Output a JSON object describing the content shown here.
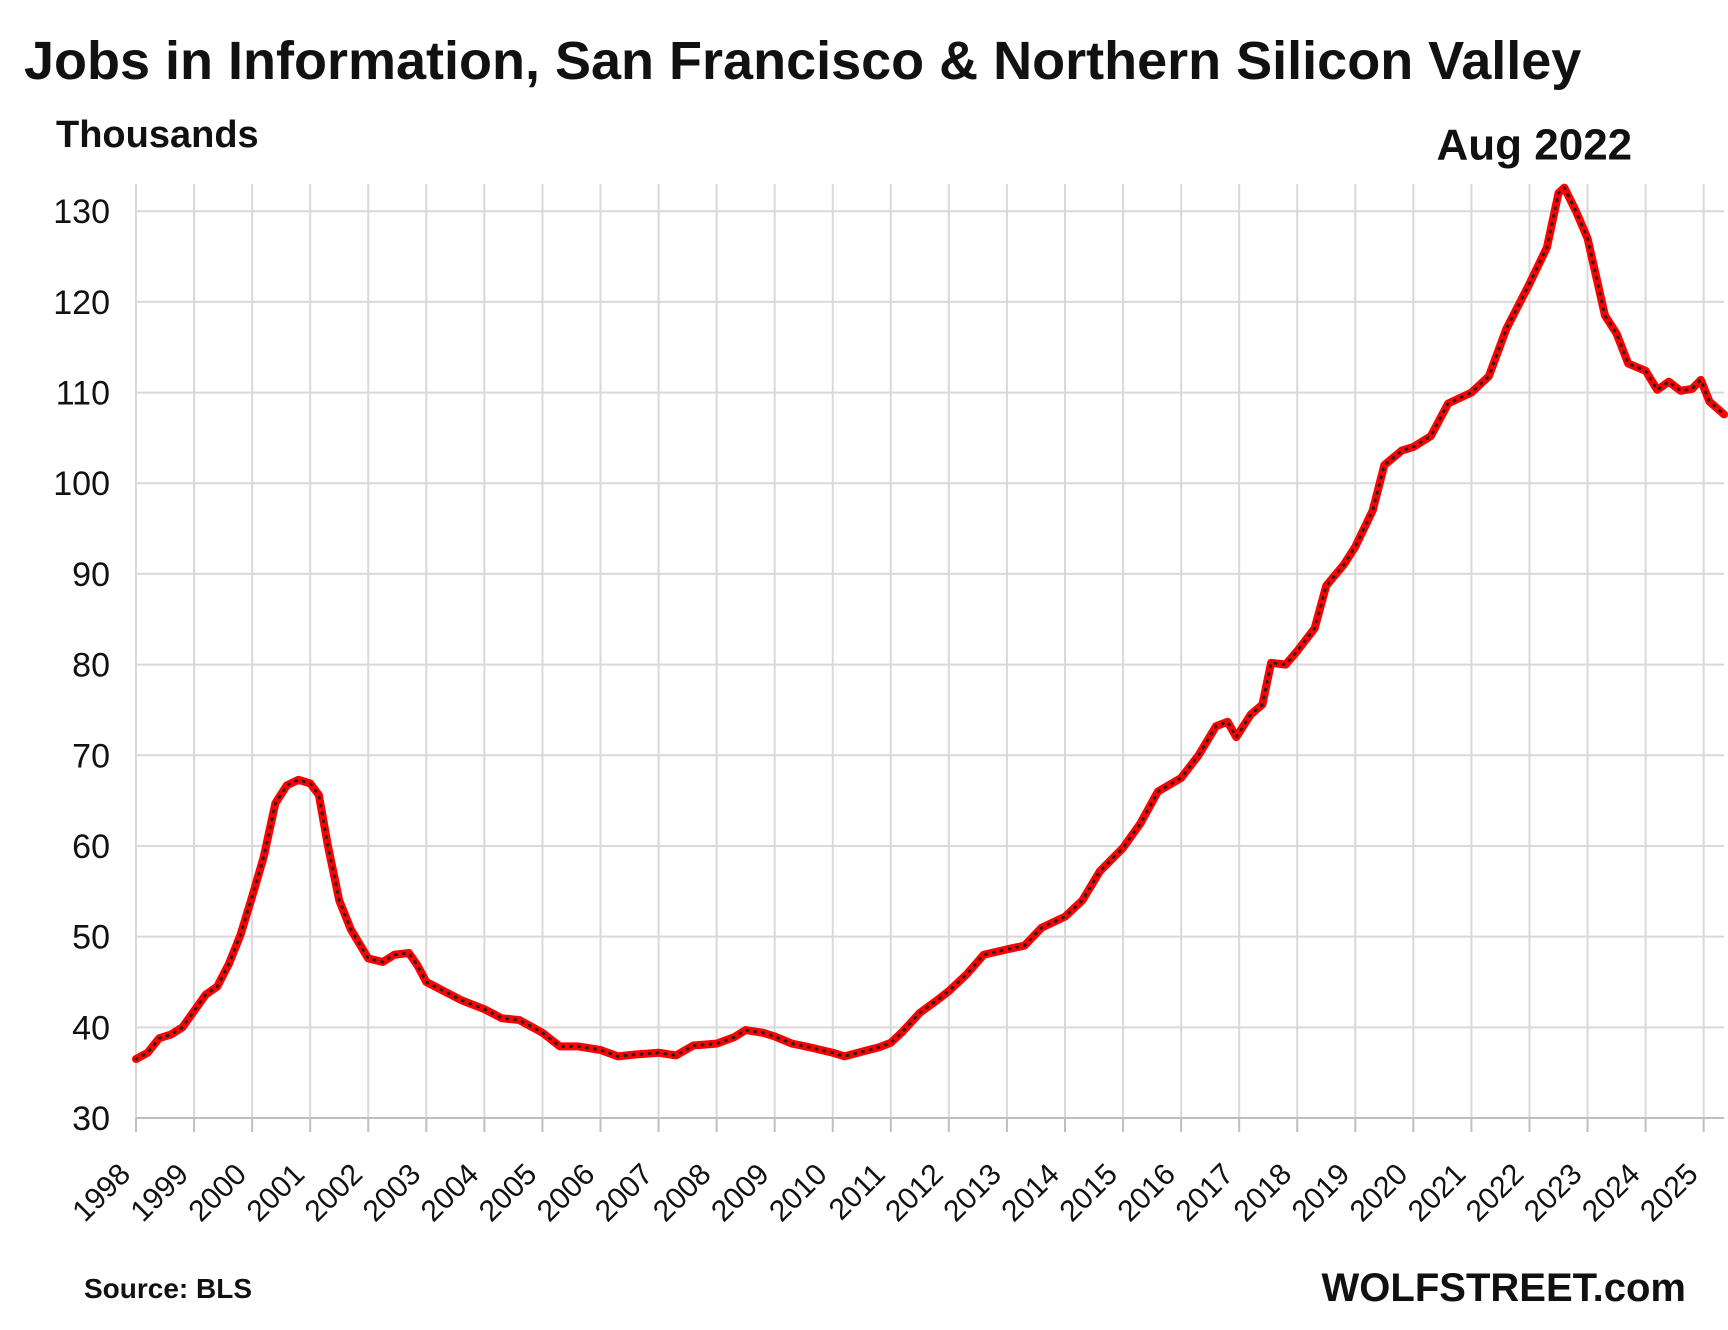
{
  "page": {
    "background_color": "#ffffff",
    "text_color": "#111111",
    "grid_color": "#d9d9d9",
    "series_color": "#ff0000",
    "dot_color": "#222222"
  },
  "chart_data": {
    "type": "line",
    "title": "Jobs in Information, San Francisco & Northern Silicon Valley",
    "subtitle": "Thousands",
    "source": "Source: BLS",
    "brand": "WOLFSTREET.com",
    "xlabel": "",
    "ylabel": "Thousands",
    "ylim": [
      30,
      133
    ],
    "yticks": [
      30,
      40,
      50,
      60,
      70,
      80,
      90,
      100,
      110,
      120,
      130
    ],
    "x_categories": [
      "1998",
      "1999",
      "2000",
      "2001",
      "2002",
      "2003",
      "2004",
      "2005",
      "2006",
      "2007",
      "2008",
      "2009",
      "2010",
      "2011",
      "2012",
      "2013",
      "2014",
      "2015",
      "2016",
      "2017",
      "2018",
      "2019",
      "2020",
      "2021",
      "2022",
      "2023",
      "2024",
      "2025"
    ],
    "x_min": 1998,
    "x_max": 2025.35,
    "series": [
      {
        "name": "Jobs in Information",
        "color": "#ff0000",
        "points": [
          {
            "x": 1998.0,
            "y": 36.5
          },
          {
            "x": 1998.2,
            "y": 37.2
          },
          {
            "x": 1998.4,
            "y": 38.8
          },
          {
            "x": 1998.6,
            "y": 39.2
          },
          {
            "x": 1998.8,
            "y": 40.0
          },
          {
            "x": 1999.0,
            "y": 41.8
          },
          {
            "x": 1999.2,
            "y": 43.6
          },
          {
            "x": 1999.4,
            "y": 44.5
          },
          {
            "x": 1999.6,
            "y": 47.0
          },
          {
            "x": 1999.8,
            "y": 50.2
          },
          {
            "x": 2000.0,
            "y": 54.4
          },
          {
            "x": 2000.2,
            "y": 58.8
          },
          {
            "x": 2000.4,
            "y": 64.7
          },
          {
            "x": 2000.6,
            "y": 66.7
          },
          {
            "x": 2000.8,
            "y": 67.3
          },
          {
            "x": 2001.0,
            "y": 66.9
          },
          {
            "x": 2001.15,
            "y": 65.6
          },
          {
            "x": 2001.3,
            "y": 60.2
          },
          {
            "x": 2001.5,
            "y": 54.0
          },
          {
            "x": 2001.7,
            "y": 50.8
          },
          {
            "x": 2002.0,
            "y": 47.6
          },
          {
            "x": 2002.25,
            "y": 47.2
          },
          {
            "x": 2002.45,
            "y": 48.0
          },
          {
            "x": 2002.7,
            "y": 48.2
          },
          {
            "x": 2002.85,
            "y": 46.8
          },
          {
            "x": 2003.0,
            "y": 45.0
          },
          {
            "x": 2003.3,
            "y": 44.0
          },
          {
            "x": 2003.6,
            "y": 43.0
          },
          {
            "x": 2004.0,
            "y": 42.0
          },
          {
            "x": 2004.3,
            "y": 41.0
          },
          {
            "x": 2004.6,
            "y": 40.8
          },
          {
            "x": 2005.0,
            "y": 39.4
          },
          {
            "x": 2005.3,
            "y": 37.9
          },
          {
            "x": 2005.6,
            "y": 37.9
          },
          {
            "x": 2006.0,
            "y": 37.5
          },
          {
            "x": 2006.3,
            "y": 36.8
          },
          {
            "x": 2006.6,
            "y": 37.0
          },
          {
            "x": 2007.0,
            "y": 37.2
          },
          {
            "x": 2007.3,
            "y": 36.9
          },
          {
            "x": 2007.6,
            "y": 38.0
          },
          {
            "x": 2008.0,
            "y": 38.2
          },
          {
            "x": 2008.3,
            "y": 38.9
          },
          {
            "x": 2008.5,
            "y": 39.7
          },
          {
            "x": 2008.8,
            "y": 39.4
          },
          {
            "x": 2009.0,
            "y": 39.0
          },
          {
            "x": 2009.3,
            "y": 38.2
          },
          {
            "x": 2009.6,
            "y": 37.8
          },
          {
            "x": 2010.0,
            "y": 37.2
          },
          {
            "x": 2010.2,
            "y": 36.8
          },
          {
            "x": 2010.5,
            "y": 37.3
          },
          {
            "x": 2010.8,
            "y": 37.8
          },
          {
            "x": 2011.0,
            "y": 38.3
          },
          {
            "x": 2011.2,
            "y": 39.5
          },
          {
            "x": 2011.5,
            "y": 41.6
          },
          {
            "x": 2011.8,
            "y": 43.0
          },
          {
            "x": 2012.0,
            "y": 44.0
          },
          {
            "x": 2012.3,
            "y": 45.8
          },
          {
            "x": 2012.6,
            "y": 48.0
          },
          {
            "x": 2013.0,
            "y": 48.6
          },
          {
            "x": 2013.3,
            "y": 49.0
          },
          {
            "x": 2013.6,
            "y": 51.0
          },
          {
            "x": 2014.0,
            "y": 52.2
          },
          {
            "x": 2014.3,
            "y": 54.0
          },
          {
            "x": 2014.6,
            "y": 57.2
          },
          {
            "x": 2015.0,
            "y": 59.8
          },
          {
            "x": 2015.3,
            "y": 62.5
          },
          {
            "x": 2015.6,
            "y": 66.0
          },
          {
            "x": 2016.0,
            "y": 67.5
          },
          {
            "x": 2016.3,
            "y": 70.0
          },
          {
            "x": 2016.6,
            "y": 73.2
          },
          {
            "x": 2016.8,
            "y": 73.7
          },
          {
            "x": 2016.95,
            "y": 72.0
          },
          {
            "x": 2017.2,
            "y": 74.5
          },
          {
            "x": 2017.4,
            "y": 75.6
          },
          {
            "x": 2017.55,
            "y": 80.2
          },
          {
            "x": 2017.8,
            "y": 80.0
          },
          {
            "x": 2018.0,
            "y": 81.5
          },
          {
            "x": 2018.3,
            "y": 84.0
          },
          {
            "x": 2018.5,
            "y": 88.7
          },
          {
            "x": 2018.8,
            "y": 91.0
          },
          {
            "x": 2019.0,
            "y": 93.0
          },
          {
            "x": 2019.3,
            "y": 97.0
          },
          {
            "x": 2019.5,
            "y": 102.0
          },
          {
            "x": 2019.8,
            "y": 103.6
          },
          {
            "x": 2020.0,
            "y": 104.0
          },
          {
            "x": 2020.3,
            "y": 105.2
          },
          {
            "x": 2020.6,
            "y": 108.8
          },
          {
            "x": 2021.0,
            "y": 110.0
          },
          {
            "x": 2021.3,
            "y": 111.8
          },
          {
            "x": 2021.6,
            "y": 117.0
          },
          {
            "x": 2022.0,
            "y": 122.0
          },
          {
            "x": 2022.3,
            "y": 126.0
          },
          {
            "x": 2022.5,
            "y": 132.0
          },
          {
            "x": 2022.6,
            "y": 132.6
          },
          {
            "x": 2022.8,
            "y": 130.0
          },
          {
            "x": 2023.0,
            "y": 127.0
          },
          {
            "x": 2023.3,
            "y": 118.5
          },
          {
            "x": 2023.5,
            "y": 116.5
          },
          {
            "x": 2023.7,
            "y": 113.2
          },
          {
            "x": 2024.0,
            "y": 112.4
          },
          {
            "x": 2024.2,
            "y": 110.3
          },
          {
            "x": 2024.4,
            "y": 111.2
          },
          {
            "x": 2024.6,
            "y": 110.2
          },
          {
            "x": 2024.8,
            "y": 110.4
          },
          {
            "x": 2024.95,
            "y": 111.4
          },
          {
            "x": 2025.1,
            "y": 109.0
          },
          {
            "x": 2025.35,
            "y": 107.6
          }
        ]
      }
    ],
    "annotations": [
      {
        "text": "Aug 2022",
        "x": 2022.6,
        "y": 132.6,
        "color": "#ff0000"
      }
    ]
  }
}
